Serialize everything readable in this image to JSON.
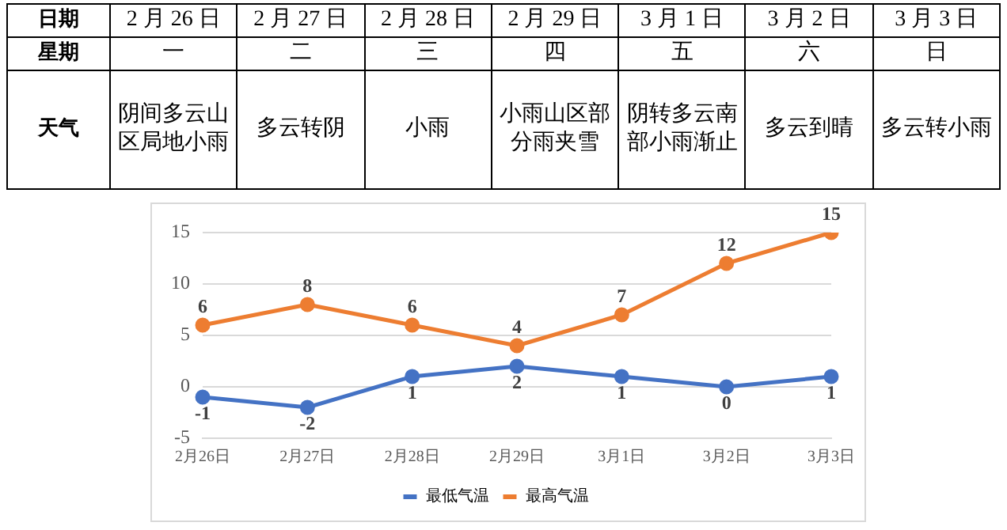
{
  "chart_data": [
    {
      "type": "heatmap",
      "xlabel": "日期",
      "categories": [
        "2 月 26 日",
        "2 月 27 日",
        "2 月 28 日",
        "2 月 29 日",
        "3 月 1 日",
        "3 月 2 日",
        "3 月 3 日"
      ],
      "y_categories": [
        "星期",
        "天气"
      ],
      "cells": [
        [
          null,
          null,
          null,
          null,
          null,
          null,
          null
        ],
        [
          null,
          null,
          null,
          null,
          null,
          null,
          null
        ]
      ],
      "cell_labels": [
        [
          "一",
          "二",
          "三",
          "四",
          "五",
          "六",
          "日"
        ],
        [
          "阴间多云山区局地小雨",
          "多云转阴",
          "小雨",
          "小雨山区部分雨夹雪",
          "阴转多云南部小雨渐止",
          "多云到晴",
          "多云转小雨"
        ]
      ]
    },
    {
      "type": "line",
      "categories": [
        "2月26日",
        "2月27日",
        "2月28日",
        "2月29日",
        "3月1日",
        "3月2日",
        "3月3日"
      ],
      "series": [
        {
          "name": "最低气温",
          "color": "#4472c4",
          "values": [
            -1,
            -2,
            1,
            2,
            1,
            0,
            1
          ]
        },
        {
          "name": "最高气温",
          "color": "#ed7d31",
          "values": [
            6,
            8,
            6,
            4,
            7,
            12,
            15
          ]
        }
      ],
      "ylim": [
        -5,
        15
      ],
      "yticks": [
        -5,
        0,
        5,
        10,
        15
      ],
      "grid": "y",
      "legend": "bottom",
      "marker": "circle",
      "line_style": "solid",
      "data_labels": true
    }
  ]
}
